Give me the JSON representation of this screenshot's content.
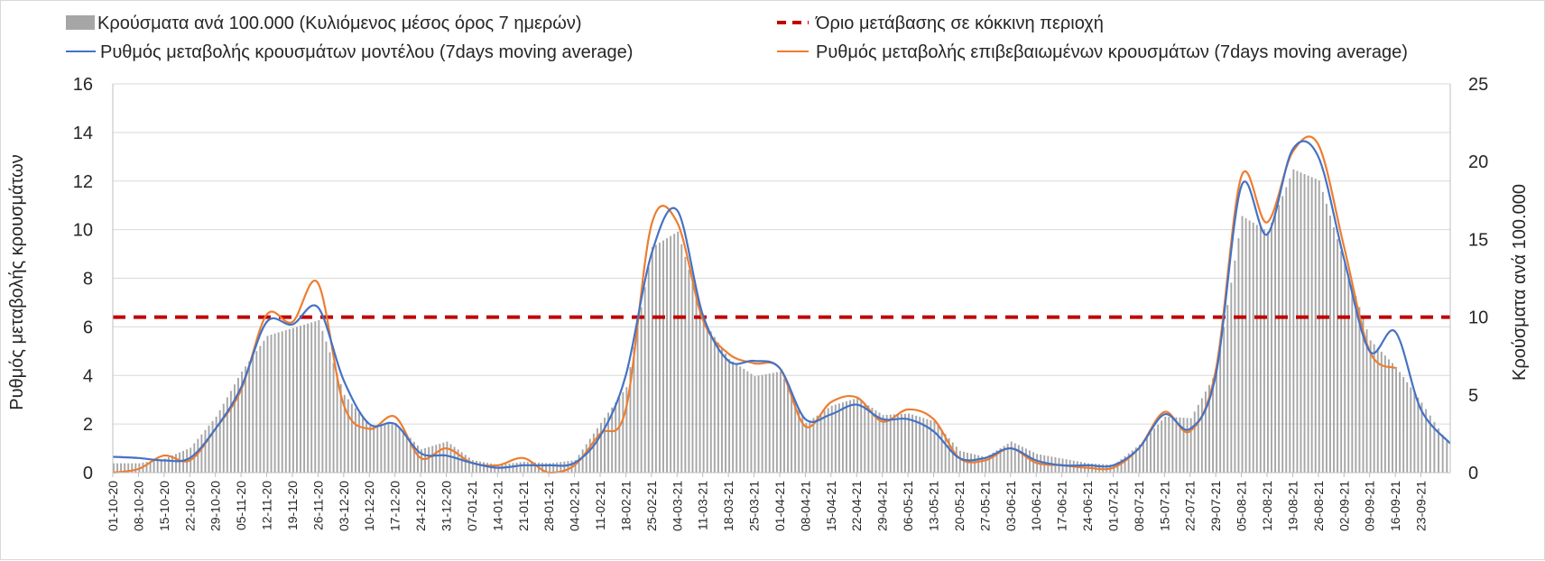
{
  "chart_data": {
    "type": "bar",
    "title": "",
    "ylabel_left": "Ρυθμός μεταβολής κρουσμάτων",
    "ylabel_right": "Κρούσματα ανά 100.000",
    "ylim_left": [
      0,
      16
    ],
    "ylim_right": [
      0,
      25
    ],
    "yticks_left": [
      "0",
      "2",
      "4",
      "6",
      "8",
      "10",
      "12",
      "14",
      "16"
    ],
    "yticks_right": [
      "0",
      "5",
      "10",
      "15",
      "20",
      "25"
    ],
    "x_start": "01-10-20",
    "x_end": "01-10-21",
    "x_ticks": [
      "01-10-20",
      "08-10-20",
      "15-10-20",
      "22-10-20",
      "29-10-20",
      "05-11-20",
      "12-11-20",
      "19-11-20",
      "26-11-20",
      "03-12-20",
      "10-12-20",
      "17-12-20",
      "24-12-20",
      "31-12-20",
      "07-01-21",
      "14-01-21",
      "21-01-21",
      "28-01-21",
      "04-02-21",
      "11-02-21",
      "18-02-21",
      "25-02-21",
      "04-03-21",
      "11-03-21",
      "18-03-21",
      "25-03-21",
      "01-04-21",
      "08-04-21",
      "15-04-21",
      "22-04-21",
      "29-04-21",
      "06-05-21",
      "13-05-21",
      "20-05-21",
      "27-05-21",
      "03-06-21",
      "10-06-21",
      "17-06-21",
      "24-06-21",
      "01-07-21",
      "08-07-21",
      "15-07-21",
      "22-07-21",
      "29-07-21",
      "05-08-21",
      "12-08-21",
      "19-08-21",
      "26-08-21",
      "02-09-21",
      "09-09-21",
      "16-09-21",
      "23-09-21"
    ],
    "legend": {
      "bars": "Κρούσματα ανά 100.000 (Κυλιόμενος μέσος όρος 7 ημερών)",
      "threshold": "Όριο μετάβασης σε κόκκινη περιοχή",
      "model": "Ρυθμός μεταβολής κρουσμάτων μοντέλου (7days moving average)",
      "confirmed": "Ρυθμός μεταβολής επιβεβαιωμένων κρουσμάτων (7days moving average)"
    },
    "legend_position": "top",
    "grid": true,
    "colors": {
      "bars": "#a6a6a6",
      "threshold": "#c00000",
      "model": "#4472c4",
      "confirmed": "#ed7d31"
    },
    "threshold_value_left": 6.4,
    "series": [
      {
        "name": "Κρούσματα ανά 100.000 (Κυλιόμενος μέσος όρος 7 ημερών)",
        "axis": "right",
        "kind": "bar",
        "x": [
          "01-10-20",
          "08-10-20",
          "15-10-20",
          "22-10-20",
          "29-10-20",
          "05-11-20",
          "12-11-20",
          "19-11-20",
          "26-11-20",
          "03-12-20",
          "10-12-20",
          "17-12-20",
          "24-12-20",
          "31-12-20",
          "07-01-21",
          "14-01-21",
          "21-01-21",
          "28-01-21",
          "04-02-21",
          "11-02-21",
          "18-02-21",
          "25-02-21",
          "04-03-21",
          "11-03-21",
          "18-03-21",
          "25-03-21",
          "01-04-21",
          "08-04-21",
          "15-04-21",
          "22-04-21",
          "29-04-21",
          "06-05-21",
          "13-05-21",
          "20-05-21",
          "27-05-21",
          "03-06-21",
          "10-06-21",
          "17-06-21",
          "24-06-21",
          "01-07-21",
          "08-07-21",
          "15-07-21",
          "22-07-21",
          "29-07-21",
          "05-08-21",
          "12-08-21",
          "19-08-21",
          "26-08-21",
          "02-09-21",
          "09-09-21",
          "16-09-21",
          "23-09-21",
          "01-10-21"
        ],
        "values": [
          0.6,
          0.6,
          0.9,
          1.6,
          3.6,
          6.5,
          8.8,
          9.3,
          9.8,
          5.0,
          3.0,
          3.2,
          1.5,
          2.0,
          0.8,
          0.5,
          0.7,
          0.6,
          0.8,
          3.2,
          5.5,
          14.5,
          15.5,
          9.8,
          7.3,
          6.2,
          6.5,
          3.2,
          4.3,
          4.8,
          3.7,
          3.8,
          3.3,
          1.4,
          1.0,
          2.0,
          1.2,
          0.9,
          0.6,
          0.5,
          1.8,
          3.6,
          3.5,
          6.5,
          16.5,
          15.5,
          19.5,
          18.8,
          13.5,
          8.5,
          6.8,
          4.5,
          1.6
        ]
      },
      {
        "name": "Ρυθμός μεταβολής κρουσμάτων μοντέλου (7days moving average)",
        "axis": "left",
        "kind": "line",
        "x": [
          "01-10-20",
          "08-10-20",
          "15-10-20",
          "22-10-20",
          "29-10-20",
          "05-11-20",
          "12-11-20",
          "19-11-20",
          "26-11-20",
          "03-12-20",
          "10-12-20",
          "17-12-20",
          "24-12-20",
          "31-12-20",
          "07-01-21",
          "14-01-21",
          "21-01-21",
          "28-01-21",
          "04-02-21",
          "11-02-21",
          "18-02-21",
          "25-02-21",
          "04-03-21",
          "11-03-21",
          "18-03-21",
          "25-03-21",
          "01-04-21",
          "08-04-21",
          "15-04-21",
          "22-04-21",
          "29-04-21",
          "06-05-21",
          "13-05-21",
          "20-05-21",
          "27-05-21",
          "03-06-21",
          "10-06-21",
          "17-06-21",
          "24-06-21",
          "01-07-21",
          "08-07-21",
          "15-07-21",
          "22-07-21",
          "29-07-21",
          "05-08-21",
          "12-08-21",
          "19-08-21",
          "26-08-21",
          "02-09-21",
          "09-09-21",
          "16-09-21",
          "23-09-21",
          "01-10-21"
        ],
        "values": [
          0.65,
          0.6,
          0.5,
          0.6,
          1.8,
          3.5,
          6.2,
          6.1,
          6.8,
          3.8,
          2.0,
          2.0,
          0.8,
          0.7,
          0.4,
          0.2,
          0.3,
          0.3,
          0.4,
          1.5,
          4.0,
          9.0,
          10.8,
          6.5,
          4.6,
          4.6,
          4.3,
          2.2,
          2.4,
          2.8,
          2.2,
          2.2,
          1.7,
          0.6,
          0.6,
          1.0,
          0.5,
          0.3,
          0.3,
          0.3,
          1.0,
          2.4,
          1.8,
          4.0,
          11.8,
          9.8,
          13.3,
          13.0,
          8.8,
          5.0,
          5.8,
          2.6,
          1.2
        ]
      },
      {
        "name": "Ρυθμός μεταβολής επιβεβαιωμένων κρουσμάτων (7days moving average)",
        "axis": "left",
        "kind": "line",
        "x": [
          "01-10-20",
          "08-10-20",
          "15-10-20",
          "22-10-20",
          "29-10-20",
          "05-11-20",
          "12-11-20",
          "19-11-20",
          "26-11-20",
          "03-12-20",
          "10-12-20",
          "17-12-20",
          "24-12-20",
          "31-12-20",
          "07-01-21",
          "14-01-21",
          "21-01-21",
          "28-01-21",
          "04-02-21",
          "11-02-21",
          "18-02-21",
          "25-02-21",
          "04-03-21",
          "11-03-21",
          "18-03-21",
          "25-03-21",
          "01-04-21",
          "08-04-21",
          "15-04-21",
          "22-04-21",
          "29-04-21",
          "06-05-21",
          "13-05-21",
          "20-05-21",
          "27-05-21",
          "03-06-21",
          "10-06-21",
          "17-06-21",
          "24-06-21",
          "01-07-21",
          "08-07-21",
          "15-07-21",
          "22-07-21",
          "29-07-21",
          "05-08-21",
          "12-08-21",
          "19-08-21",
          "26-08-21",
          "02-09-21",
          "09-09-21",
          "16-09-21"
        ],
        "values": [
          0.0,
          0.15,
          0.7,
          0.5,
          1.8,
          3.4,
          6.5,
          6.2,
          7.8,
          2.8,
          1.8,
          2.3,
          0.6,
          1.0,
          0.4,
          0.3,
          0.6,
          0.0,
          0.3,
          1.6,
          2.6,
          10.2,
          10.3,
          6.3,
          4.9,
          4.5,
          4.3,
          1.9,
          2.9,
          3.1,
          2.1,
          2.6,
          2.2,
          0.6,
          0.5,
          1.0,
          0.4,
          0.3,
          0.2,
          0.2,
          1.0,
          2.5,
          1.7,
          4.2,
          12.2,
          10.3,
          13.2,
          13.5,
          9.3,
          5.0,
          4.3
        ]
      }
    ]
  }
}
